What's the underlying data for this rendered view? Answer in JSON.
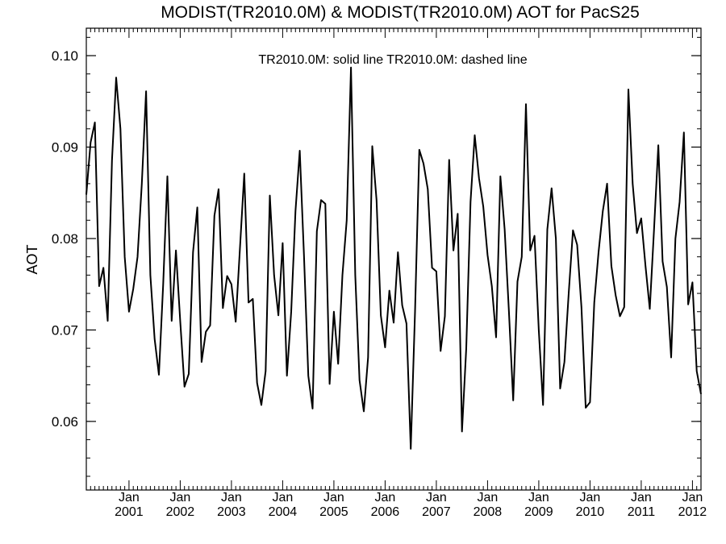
{
  "chart_data": {
    "type": "line",
    "title": "MODIST(TR2010.0M) & MODIST(TR2010.0M)  AOT for PacS25",
    "annotation": "TR2010.0M: solid line   TR2010.0M: dashed line",
    "ylabel": "AOT",
    "xlabel": "",
    "ylim": [
      0.0525,
      0.103
    ],
    "xlim": [
      "2000-03",
      "2012-03"
    ],
    "yticks": [
      {
        "value": 0.06,
        "label": "0.06"
      },
      {
        "value": 0.07,
        "label": "0.07"
      },
      {
        "value": 0.08,
        "label": "0.08"
      },
      {
        "value": 0.09,
        "label": "0.09"
      },
      {
        "value": 0.1,
        "label": "0.10"
      }
    ],
    "xticks": [
      {
        "month": "2001-01",
        "month_label": "Jan",
        "year_label": "2001"
      },
      {
        "month": "2002-01",
        "month_label": "Jan",
        "year_label": "2002"
      },
      {
        "month": "2003-01",
        "month_label": "Jan",
        "year_label": "2003"
      },
      {
        "month": "2004-01",
        "month_label": "Jan",
        "year_label": "2004"
      },
      {
        "month": "2005-01",
        "month_label": "Jan",
        "year_label": "2005"
      },
      {
        "month": "2006-01",
        "month_label": "Jan",
        "year_label": "2006"
      },
      {
        "month": "2007-01",
        "month_label": "Jan",
        "year_label": "2007"
      },
      {
        "month": "2008-01",
        "month_label": "Jan",
        "year_label": "2008"
      },
      {
        "month": "2009-01",
        "month_label": "Jan",
        "year_label": "2009"
      },
      {
        "month": "2010-01",
        "month_label": "Jan",
        "year_label": "2010"
      },
      {
        "month": "2011-01",
        "month_label": "Jan",
        "year_label": "2011"
      },
      {
        "month": "2012-01",
        "month_label": "Jan",
        "year_label": "2012"
      }
    ],
    "series": [
      {
        "style": "solid",
        "color": "#000000",
        "points": [
          [
            "2000-03",
            0.0848
          ],
          [
            "2000-04",
            0.0905
          ],
          [
            "2000-05",
            0.0927
          ],
          [
            "2000-06",
            0.0748
          ],
          [
            "2000-07",
            0.0768
          ],
          [
            "2000-08",
            0.071
          ],
          [
            "2000-09",
            0.0885
          ],
          [
            "2000-10",
            0.0976
          ],
          [
            "2000-11",
            0.092
          ],
          [
            "2000-12",
            0.078
          ],
          [
            "2001-01",
            0.072
          ],
          [
            "2001-02",
            0.0745
          ],
          [
            "2001-03",
            0.078
          ],
          [
            "2001-04",
            0.086
          ],
          [
            "2001-05",
            0.0961
          ],
          [
            "2001-06",
            0.076
          ],
          [
            "2001-07",
            0.069
          ],
          [
            "2001-08",
            0.0651
          ],
          [
            "2001-09",
            0.075
          ],
          [
            "2001-10",
            0.0868
          ],
          [
            "2001-11",
            0.071
          ],
          [
            "2001-12",
            0.0787
          ],
          [
            "2002-01",
            0.071
          ],
          [
            "2002-02",
            0.0638
          ],
          [
            "2002-03",
            0.0652
          ],
          [
            "2002-04",
            0.0785
          ],
          [
            "2002-05",
            0.0834
          ],
          [
            "2002-06",
            0.0665
          ],
          [
            "2002-07",
            0.0698
          ],
          [
            "2002-08",
            0.0705
          ],
          [
            "2002-09",
            0.0825
          ],
          [
            "2002-10",
            0.0854
          ],
          [
            "2002-11",
            0.0724
          ],
          [
            "2002-12",
            0.0759
          ],
          [
            "2003-01",
            0.075
          ],
          [
            "2003-02",
            0.0709
          ],
          [
            "2003-03",
            0.079
          ],
          [
            "2003-04",
            0.0871
          ],
          [
            "2003-05",
            0.073
          ],
          [
            "2003-06",
            0.0734
          ],
          [
            "2003-07",
            0.0642
          ],
          [
            "2003-08",
            0.0618
          ],
          [
            "2003-09",
            0.0655
          ],
          [
            "2003-10",
            0.0847
          ],
          [
            "2003-11",
            0.076
          ],
          [
            "2003-12",
            0.0716
          ],
          [
            "2004-01",
            0.0795
          ],
          [
            "2004-02",
            0.065
          ],
          [
            "2004-03",
            0.072
          ],
          [
            "2004-04",
            0.083
          ],
          [
            "2004-05",
            0.0896
          ],
          [
            "2004-06",
            0.078
          ],
          [
            "2004-07",
            0.065
          ],
          [
            "2004-08",
            0.0614
          ],
          [
            "2004-09",
            0.0808
          ],
          [
            "2004-10",
            0.0842
          ],
          [
            "2004-11",
            0.0838
          ],
          [
            "2004-12",
            0.0641
          ],
          [
            "2005-01",
            0.072
          ],
          [
            "2005-02",
            0.0663
          ],
          [
            "2005-03",
            0.076
          ],
          [
            "2005-04",
            0.082
          ],
          [
            "2005-05",
            0.0987
          ],
          [
            "2005-06",
            0.076
          ],
          [
            "2005-07",
            0.0645
          ],
          [
            "2005-08",
            0.0611
          ],
          [
            "2005-09",
            0.067
          ],
          [
            "2005-10",
            0.0901
          ],
          [
            "2005-11",
            0.0842
          ],
          [
            "2005-12",
            0.0716
          ],
          [
            "2006-01",
            0.0681
          ],
          [
            "2006-02",
            0.0743
          ],
          [
            "2006-03",
            0.0708
          ],
          [
            "2006-04",
            0.0785
          ],
          [
            "2006-05",
            0.0727
          ],
          [
            "2006-06",
            0.0707
          ],
          [
            "2006-07",
            0.057
          ],
          [
            "2006-08",
            0.072
          ],
          [
            "2006-09",
            0.0897
          ],
          [
            "2006-10",
            0.0882
          ],
          [
            "2006-11",
            0.0854
          ],
          [
            "2006-12",
            0.0768
          ],
          [
            "2007-01",
            0.0764
          ],
          [
            "2007-02",
            0.0677
          ],
          [
            "2007-03",
            0.0715
          ],
          [
            "2007-04",
            0.0886
          ],
          [
            "2007-05",
            0.0787
          ],
          [
            "2007-06",
            0.0827
          ],
          [
            "2007-07",
            0.0589
          ],
          [
            "2007-08",
            0.068
          ],
          [
            "2007-09",
            0.084
          ],
          [
            "2007-10",
            0.0913
          ],
          [
            "2007-11",
            0.0866
          ],
          [
            "2007-12",
            0.0835
          ],
          [
            "2008-01",
            0.0782
          ],
          [
            "2008-02",
            0.0748
          ],
          [
            "2008-03",
            0.0692
          ],
          [
            "2008-04",
            0.0868
          ],
          [
            "2008-05",
            0.081
          ],
          [
            "2008-06",
            0.072
          ],
          [
            "2008-07",
            0.0623
          ],
          [
            "2008-08",
            0.0753
          ],
          [
            "2008-09",
            0.078
          ],
          [
            "2008-10",
            0.0947
          ],
          [
            "2008-11",
            0.0787
          ],
          [
            "2008-12",
            0.0803
          ],
          [
            "2009-01",
            0.07
          ],
          [
            "2009-02",
            0.0618
          ],
          [
            "2009-03",
            0.081
          ],
          [
            "2009-04",
            0.0855
          ],
          [
            "2009-05",
            0.08
          ],
          [
            "2009-06",
            0.0636
          ],
          [
            "2009-07",
            0.0665
          ],
          [
            "2009-08",
            0.074
          ],
          [
            "2009-09",
            0.0809
          ],
          [
            "2009-10",
            0.0793
          ],
          [
            "2009-11",
            0.0725
          ],
          [
            "2009-12",
            0.0615
          ],
          [
            "2010-01",
            0.0621
          ],
          [
            "2010-02",
            0.073
          ],
          [
            "2010-03",
            0.0785
          ],
          [
            "2010-04",
            0.083
          ],
          [
            "2010-05",
            0.086
          ],
          [
            "2010-06",
            0.077
          ],
          [
            "2010-07",
            0.0738
          ],
          [
            "2010-08",
            0.0715
          ],
          [
            "2010-09",
            0.0725
          ],
          [
            "2010-10",
            0.0963
          ],
          [
            "2010-11",
            0.086
          ],
          [
            "2010-12",
            0.0806
          ],
          [
            "2011-01",
            0.0822
          ],
          [
            "2011-02",
            0.077
          ],
          [
            "2011-03",
            0.0723
          ],
          [
            "2011-04",
            0.081
          ],
          [
            "2011-05",
            0.0902
          ],
          [
            "2011-06",
            0.0775
          ],
          [
            "2011-07",
            0.0747
          ],
          [
            "2011-08",
            0.067
          ],
          [
            "2011-09",
            0.08
          ],
          [
            "2011-10",
            0.084
          ],
          [
            "2011-11",
            0.0916
          ],
          [
            "2011-12",
            0.0728
          ],
          [
            "2012-01",
            0.0752
          ],
          [
            "2012-02",
            0.0655
          ],
          [
            "2012-03",
            0.063
          ]
        ]
      }
    ],
    "grid": false,
    "legend": "none"
  }
}
